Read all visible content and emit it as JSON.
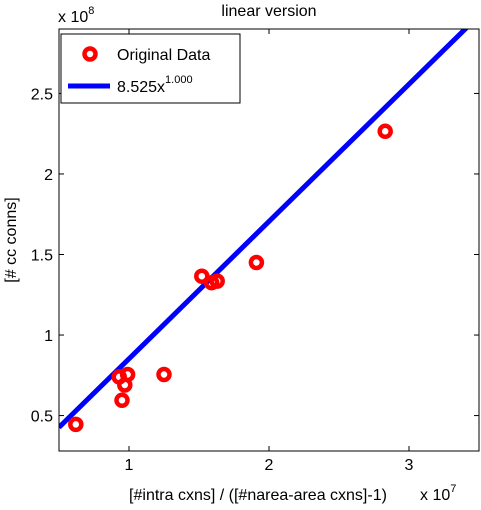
{
  "chart_data": {
    "type": "scatter",
    "title": "linear version",
    "xlabel": "[#intra cxns] / ([#narea-area cxns]-1)",
    "ylabel": "[# cc conns]",
    "x_multiplier": "x 10",
    "x_exponent": "7",
    "y_multiplier": "x 10",
    "y_exponent": "8",
    "xlim": [
      5000000,
      35000000
    ],
    "ylim": [
      28000000,
      290000000
    ],
    "x_ticks": [
      10000000,
      20000000,
      30000000
    ],
    "x_tick_labels": [
      "1",
      "2",
      "3"
    ],
    "y_ticks": [
      50000000,
      100000000,
      150000000,
      200000000,
      250000000
    ],
    "y_tick_labels": [
      "0.5",
      "1",
      "1.5",
      "2",
      "2.5"
    ],
    "grid": false,
    "legend_position": "top-left",
    "series": [
      {
        "name": "Original Data",
        "kind": "markers",
        "marker": "circle",
        "color": "#ff0000",
        "x": [
          6200000,
          9300000,
          9500000,
          9700000,
          9900000,
          12500000,
          15200000,
          15900000,
          16300000,
          19100000,
          28300000
        ],
        "y": [
          44500000,
          74000000,
          59500000,
          69000000,
          75500000,
          75500000,
          136500000,
          132500000,
          133500000,
          145000000,
          226500000
        ]
      },
      {
        "name": "8.525x",
        "name_exponent": "1.000",
        "kind": "line",
        "color": "#0000ff",
        "equation": {
          "coefficient": 8.525,
          "exponent": 1.0
        },
        "x": [
          5000000,
          35000000
        ],
        "y": [
          42625000,
          298375000
        ]
      }
    ]
  }
}
